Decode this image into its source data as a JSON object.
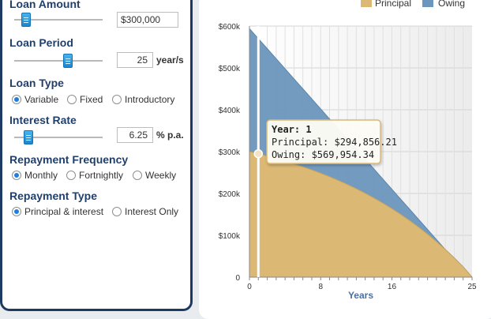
{
  "loan_amount": {
    "label": "Loan Amount",
    "value": "$300,000",
    "fraction": 0.09
  },
  "loan_period": {
    "label": "Loan Period",
    "value": "25",
    "unit": "year/s",
    "fraction": 0.62
  },
  "loan_type": {
    "label": "Loan Type",
    "options": [
      "Variable",
      "Fixed",
      "Introductory"
    ],
    "selected": "Variable"
  },
  "interest_rate": {
    "label": "Interest Rate",
    "value": "6.25",
    "unit": "% p.a.",
    "fraction": 0.12
  },
  "repayment_frequency": {
    "label": "Repayment Frequency",
    "options": [
      "Monthly",
      "Fortnightly",
      "Weekly"
    ],
    "selected": "Monthly"
  },
  "repayment_type": {
    "label": "Repayment Type",
    "options": [
      "Principal & interest",
      "Interest Only"
    ],
    "selected": "Principal & interest"
  },
  "tooltip": {
    "year_line": "Year: 1",
    "principal_line": "Principal: $294,856.21",
    "owing_line": "Owing: $569,954.34"
  },
  "colors": {
    "principal": "#dcb875",
    "owing": "#6b96bd",
    "accent": "#1e7fe0",
    "label": "#213f6b"
  },
  "chart_data": {
    "type": "area",
    "xlabel": "Years",
    "ylabel": "",
    "xlim": [
      0,
      25
    ],
    "ylim": [
      0,
      600000
    ],
    "x_ticks": [
      "0",
      "8",
      "16",
      "25"
    ],
    "y_ticks": [
      "0",
      "$100k",
      "$200k",
      "$300k",
      "$400k",
      "$500k",
      "$600k"
    ],
    "legend": {
      "position": "top-right",
      "entries": [
        "Principal",
        "Owing"
      ]
    },
    "x": [
      0,
      1,
      2,
      3,
      4,
      5,
      6,
      7,
      8,
      9,
      10,
      11,
      12,
      13,
      14,
      15,
      16,
      17,
      18,
      19,
      20,
      21,
      22,
      23,
      24,
      25
    ],
    "series": [
      {
        "name": "Principal",
        "values": [
          300000,
          294856,
          289380,
          283556,
          277360,
          270768,
          263756,
          256296,
          248360,
          239917,
          230936,
          221381,
          211216,
          200403,
          188899,
          176662,
          163643,
          149794,
          135060,
          119386,
          102711,
          84973,
          66102,
          46027,
          24671,
          0
        ]
      },
      {
        "name": "Owing",
        "values": [
          594000,
          569954,
          546000,
          522000,
          498000,
          474000,
          450000,
          426000,
          402000,
          378000,
          354000,
          330000,
          306000,
          282000,
          258000,
          234000,
          210000,
          186000,
          162000,
          138000,
          114000,
          90000,
          66000,
          46027,
          24671,
          0
        ]
      }
    ],
    "hover_x": 1
  }
}
